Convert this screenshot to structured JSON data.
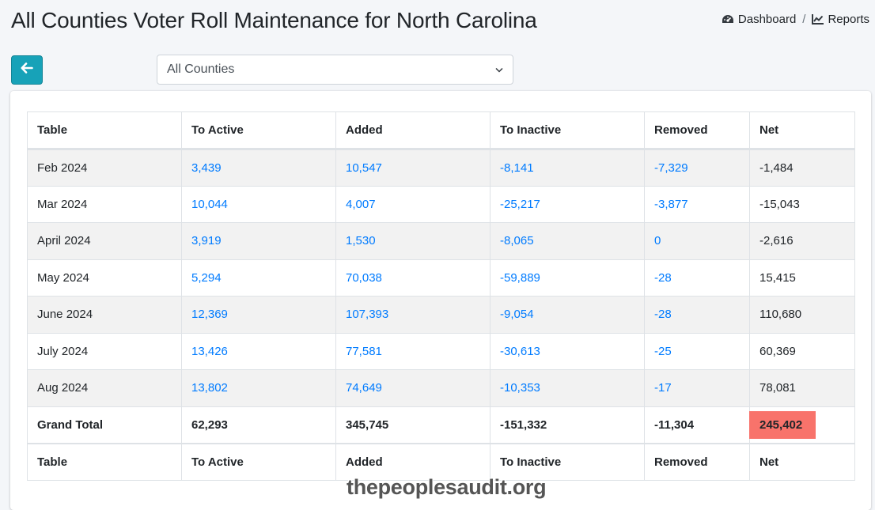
{
  "page": {
    "title": "All Counties Voter Roll Maintenance for North Carolina"
  },
  "nav": {
    "dashboard_label": "Dashboard",
    "separator": "/",
    "reports_label": "Reports"
  },
  "filter": {
    "selected": "All Counties"
  },
  "table": {
    "headers": [
      "Table",
      "To Active",
      "Added",
      "To Inactive",
      "Removed",
      "Net"
    ],
    "rows": [
      [
        "Feb 2024",
        "3,439",
        "10,547",
        "-8,141",
        "-7,329",
        "-1,484"
      ],
      [
        "Mar 2024",
        "10,044",
        "4,007",
        "-25,217",
        "-3,877",
        "-15,043"
      ],
      [
        "April 2024",
        "3,919",
        "1,530",
        "-8,065",
        "0",
        "-2,616"
      ],
      [
        "May 2024",
        "5,294",
        "70,038",
        "-59,889",
        "-28",
        "15,415"
      ],
      [
        "June 2024",
        "12,369",
        "107,393",
        "-9,054",
        "-28",
        "110,680"
      ],
      [
        "July 2024",
        "13,426",
        "77,581",
        "-30,613",
        "-25",
        "60,369"
      ],
      [
        "Aug 2024",
        "13,802",
        "74,649",
        "-10,353",
        "-17",
        "78,081"
      ]
    ],
    "total": [
      "Grand Total",
      "62,293",
      "345,745",
      "-151,332",
      "-11,304",
      "245,402"
    ],
    "footer": [
      "Table",
      "To Active",
      "Added",
      "To Inactive",
      "Removed",
      "Net"
    ]
  },
  "watermark": "thepeoplesaudit.org",
  "colors": {
    "accent": "#17a2b8",
    "link": "#007bff",
    "highlight": "#f8736b"
  },
  "icons": {
    "dashboard": "tachometer-icon",
    "reports": "line-chart-icon",
    "back": "arrow-left-icon",
    "select": "chevron-down-icon"
  }
}
